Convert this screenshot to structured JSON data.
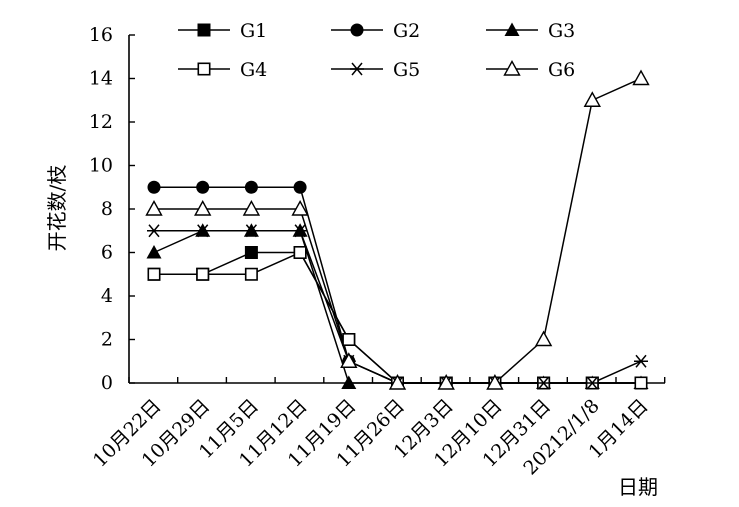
{
  "chart_data": {
    "type": "line",
    "title": "",
    "xlabel": "日期",
    "ylabel": "开花数/枝",
    "ylim": [
      0,
      16
    ],
    "yticks": [
      0,
      2,
      4,
      6,
      8,
      10,
      12,
      14,
      16
    ],
    "grid": false,
    "legend_position": "top",
    "categories": [
      "10月22日",
      "10月29日",
      "11月5日",
      "11月12日",
      "11月19日",
      "11月26日",
      "12月3日",
      "12月10日",
      "12月31日",
      "20212/1/8",
      "1月14日"
    ],
    "series": [
      {
        "name": "G1",
        "marker": "filled-square",
        "values": [
          5,
          5,
          6,
          6,
          2,
          0,
          0,
          0,
          0,
          0,
          0
        ]
      },
      {
        "name": "G2",
        "marker": "filled-circle",
        "values": [
          9,
          9,
          9,
          9,
          1,
          0,
          0,
          0,
          0,
          0,
          0
        ]
      },
      {
        "name": "G3",
        "marker": "filled-triangle",
        "values": [
          6,
          7,
          7,
          7,
          0,
          0,
          0,
          0,
          0,
          0,
          0
        ]
      },
      {
        "name": "G4",
        "marker": "open-square",
        "values": [
          5,
          5,
          5,
          6,
          2,
          0,
          0,
          0,
          0,
          0,
          0
        ]
      },
      {
        "name": "G5",
        "marker": "asterisk",
        "values": [
          7,
          7,
          7,
          7,
          1,
          0,
          0,
          0,
          0,
          0,
          1
        ]
      },
      {
        "name": "G6",
        "marker": "open-triangle",
        "values": [
          8,
          8,
          8,
          8,
          1,
          0,
          0,
          0,
          2,
          13,
          14
        ]
      }
    ]
  }
}
